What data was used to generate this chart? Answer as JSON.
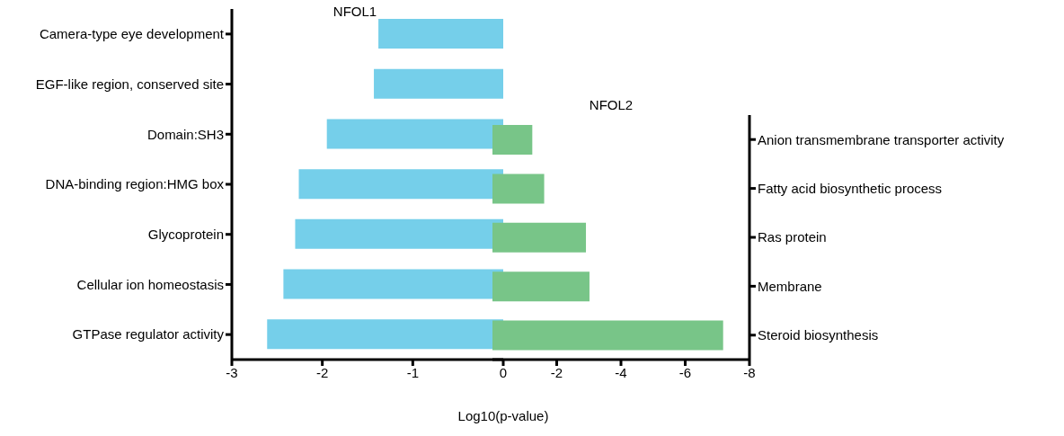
{
  "chart_data": [
    {
      "type": "bar",
      "orientation": "horizontal",
      "title": "NFOL1",
      "xlabel": "Log10(p-value)",
      "categories": [
        "Camera-type eye development",
        "EGF-like region, conserved site",
        "Domain:SH3",
        "DNA-binding region:HMG box",
        "Glycoprotein",
        "Cellular ion homeostasis",
        "GTPase regulator activity"
      ],
      "values": [
        -1.38,
        -1.43,
        -1.95,
        -2.26,
        -2.3,
        -2.43,
        -2.61
      ],
      "color": "#75cfea",
      "xlim": [
        -3,
        0
      ],
      "xticks": [
        -3,
        -2,
        -1,
        0
      ]
    },
    {
      "type": "bar",
      "orientation": "horizontal",
      "title": "NFOL2",
      "categories": [
        "Anion transmembrane transporter activity",
        "Fatty acid biosynthetic process",
        "Ras protein",
        "Membrane",
        "Steroid biosynthesis"
      ],
      "values": [
        -1.24,
        -1.61,
        -2.91,
        -3.02,
        -7.18
      ],
      "color": "#78c588",
      "xlim": [
        0,
        -8
      ],
      "xticks": [
        -2,
        -4,
        -6,
        -8
      ]
    }
  ]
}
